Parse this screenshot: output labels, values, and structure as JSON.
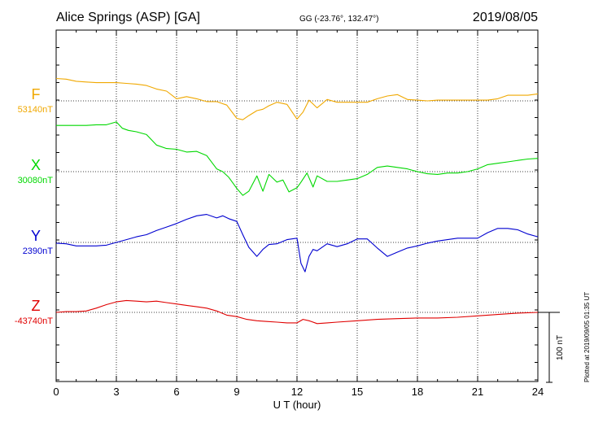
{
  "header": {
    "station": "Alice Springs (ASP)  [GA]",
    "coords": "GG (-23.76°, 132.47°)",
    "date": "2019/08/05"
  },
  "footer": {
    "plotted": "Plotted at 2019/09/05 01:35 UT",
    "scale_label": "100 nT"
  },
  "chart_data": {
    "type": "line",
    "xlabel": "U T (hour)",
    "xlim": [
      0,
      24
    ],
    "xticks": [
      0,
      3,
      6,
      9,
      12,
      15,
      18,
      21,
      24
    ],
    "scale_bar_nT": 100,
    "grid": true,
    "series": [
      {
        "name": "F",
        "baseline_label": "53140nT",
        "color": "#f0a800",
        "x": [
          0,
          0.5,
          1,
          1.5,
          2,
          2.5,
          3,
          3.5,
          4,
          4.5,
          5,
          5.5,
          6,
          6.5,
          7,
          7.5,
          8,
          8.5,
          9,
          9.3,
          9.6,
          10,
          10.3,
          10.6,
          11,
          11.5,
          12,
          12.3,
          12.6,
          13,
          13.5,
          14,
          14.5,
          15,
          15.5,
          16,
          16.5,
          17,
          17.5,
          18,
          18.5,
          19,
          19.5,
          20,
          20.5,
          21,
          21.5,
          22,
          22.5,
          23,
          23.5,
          24
        ],
        "y": [
          32,
          31,
          28,
          27,
          26,
          26,
          26,
          25,
          24,
          22,
          17,
          14,
          3,
          6,
          3,
          -1,
          -1,
          -6,
          -25,
          -27,
          -21,
          -14,
          -12,
          -7,
          -2,
          -5,
          -26,
          -16,
          1,
          -10,
          2,
          -2,
          -2,
          -2,
          -2,
          3,
          7,
          9,
          2,
          1,
          0,
          1,
          1,
          1,
          1,
          1,
          1,
          3,
          8,
          8,
          8,
          10
        ]
      },
      {
        "name": "X",
        "baseline_label": "30080nT",
        "color": "#00d800",
        "x": [
          0,
          0.5,
          1,
          1.5,
          2,
          2.5,
          3,
          3.3,
          3.6,
          4,
          4.5,
          5,
          5.5,
          6,
          6.5,
          7,
          7.5,
          8,
          8.3,
          8.6,
          9,
          9.3,
          9.6,
          10,
          10.3,
          10.6,
          11,
          11.3,
          11.6,
          12,
          12.2,
          12.5,
          12.8,
          13,
          13.5,
          14,
          14.5,
          15,
          15.5,
          16,
          16.5,
          17,
          17.5,
          18,
          18.5,
          19,
          19.5,
          20,
          20.5,
          21,
          21.5,
          22,
          22.5,
          23,
          23.5,
          24
        ],
        "y": [
          66,
          66,
          66,
          66,
          67,
          67,
          71,
          62,
          59,
          57,
          53,
          38,
          33,
          32,
          28,
          29,
          23,
          4,
          0,
          -8,
          -24,
          -34,
          -28,
          -6,
          -28,
          -4,
          -15,
          -12,
          -29,
          -23,
          -15,
          -2,
          -22,
          -6,
          -14,
          -14,
          -12,
          -10,
          -4,
          6,
          8,
          6,
          4,
          0,
          -3,
          -4,
          -2,
          -2,
          0,
          4,
          10,
          12,
          14,
          16,
          18,
          19
        ]
      },
      {
        "name": "Y",
        "baseline_label": "2390nT",
        "color": "#0000d0",
        "x": [
          0,
          0.5,
          1,
          1.5,
          2,
          2.5,
          3,
          3.5,
          4,
          4.5,
          5,
          5.5,
          6,
          6.5,
          7,
          7.5,
          8,
          8.3,
          8.6,
          9,
          9.3,
          9.6,
          10,
          10.3,
          10.6,
          11,
          11.5,
          12,
          12.2,
          12.4,
          12.6,
          12.8,
          13,
          13.5,
          14,
          14.5,
          15,
          15.5,
          16,
          16.5,
          17,
          17.5,
          18,
          18.5,
          19,
          19.5,
          20,
          20.5,
          21,
          21.5,
          22,
          22.5,
          23,
          23.5,
          24
        ],
        "y": [
          -1,
          -2,
          -5,
          -5,
          -5,
          -4,
          0,
          4,
          8,
          11,
          17,
          22,
          27,
          33,
          38,
          40,
          35,
          38,
          34,
          30,
          11,
          -7,
          -20,
          -10,
          -3,
          -2,
          4,
          6,
          -30,
          -42,
          -20,
          -10,
          -12,
          -2,
          -6,
          -2,
          5,
          5,
          -8,
          -20,
          -14,
          -8,
          -5,
          -1,
          2,
          4,
          6,
          6,
          6,
          14,
          20,
          20,
          18,
          12,
          8
        ]
      },
      {
        "name": "Z",
        "baseline_label": "-43740nT",
        "color": "#e00000",
        "x": [
          0,
          0.5,
          1,
          1.5,
          2,
          2.5,
          3,
          3.5,
          4,
          4.5,
          5,
          5.5,
          6,
          6.5,
          7,
          7.5,
          8,
          8.5,
          9,
          9.5,
          10,
          10.5,
          11,
          11.5,
          12,
          12.3,
          12.6,
          13,
          13.5,
          14,
          15,
          16,
          17,
          18,
          19,
          20,
          21,
          22,
          23,
          24
        ],
        "y": [
          0,
          1,
          1,
          2,
          6,
          11,
          15,
          17,
          16,
          15,
          16,
          14,
          12,
          10,
          8,
          6,
          2,
          -4,
          -6,
          -10,
          -12,
          -13,
          -14,
          -15,
          -15,
          -10,
          -12,
          -16,
          -15,
          -14,
          -12,
          -10,
          -9,
          -8,
          -8,
          -7,
          -5,
          -3,
          -1,
          0
        ]
      }
    ]
  }
}
